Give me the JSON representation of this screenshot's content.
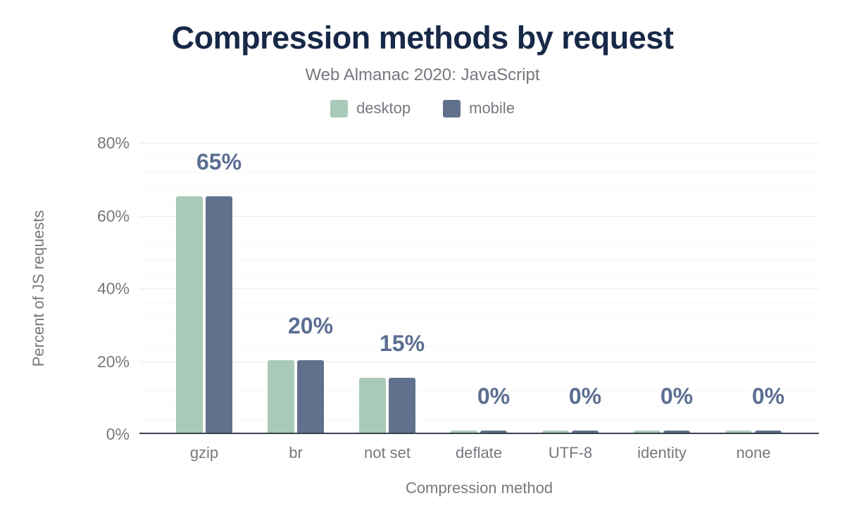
{
  "chart": {
    "title": "Compression methods by request",
    "subtitle": "Web Almanac 2020: JavaScript",
    "y_axis_title": "Percent of JS requests",
    "x_axis_title": "Compression method"
  },
  "chart_data": {
    "type": "bar",
    "title": "Compression methods by request",
    "subtitle": "Web Almanac 2020: JavaScript",
    "categories": [
      "gzip",
      "br",
      "not set",
      "deflate",
      "UTF-8",
      "identity",
      "none"
    ],
    "series": [
      {
        "name": "desktop",
        "color": "#a9cab8",
        "values": [
          65,
          20,
          15,
          0,
          0,
          0,
          0
        ]
      },
      {
        "name": "mobile",
        "color": "#61718d",
        "values": [
          65,
          20,
          15,
          0,
          0,
          0,
          0
        ]
      }
    ],
    "data_labels": [
      "65%",
      "20%",
      "15%",
      "0%",
      "0%",
      "0%",
      "0%"
    ],
    "xlabel": "Compression method",
    "ylabel": "Percent of JS requests",
    "ylim": [
      0,
      80
    ],
    "yticks": [
      {
        "value": 0,
        "label": "0%"
      },
      {
        "value": 20,
        "label": "20%"
      },
      {
        "value": 40,
        "label": "40%"
      },
      {
        "value": 60,
        "label": "60%"
      },
      {
        "value": 80,
        "label": "80%"
      }
    ],
    "minor_grid_step": 4,
    "major_grid_step": 20,
    "grid": "horizontal",
    "legend_position": "top"
  },
  "colors": {
    "title": "#182948",
    "muted_text": "#75787e",
    "data_label": "#5b6e91",
    "axis_line": "#39414d",
    "grid_major": "#ebebeb",
    "grid_minor": "#f6f6f6",
    "desktop": "#a9cab8",
    "mobile": "#61718d",
    "background": "#ffffff"
  }
}
